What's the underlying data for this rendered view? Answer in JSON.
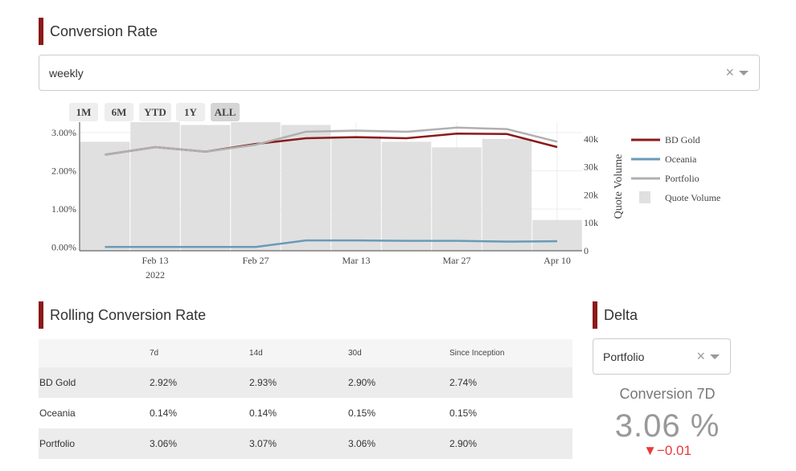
{
  "conversion_section": {
    "title": "Conversion Rate"
  },
  "frequency_dropdown": {
    "value": "weekly",
    "clear": "×"
  },
  "rangeselector": [
    "1M",
    "6M",
    "YTD",
    "1Y",
    "ALL"
  ],
  "active_range": "ALL",
  "chart_data": {
    "type": "line+bar",
    "x": [
      "2022-02-06",
      "2022-02-13",
      "2022-02-20",
      "2022-02-27",
      "2022-03-06",
      "2022-03-13",
      "2022-03-20",
      "2022-03-27",
      "2022-04-03",
      "2022-04-10"
    ],
    "x_ticks": [
      {
        "date": "2022-02-13",
        "label": "Feb 13",
        "sub": "2022"
      },
      {
        "date": "2022-02-27",
        "label": "Feb 27",
        "sub": ""
      },
      {
        "date": "2022-03-13",
        "label": "Mar 13",
        "sub": ""
      },
      {
        "date": "2022-03-27",
        "label": "Mar 27",
        "sub": ""
      },
      {
        "date": "2022-04-10",
        "label": "Apr 10",
        "sub": ""
      }
    ],
    "y_ticks": [
      "0.00%",
      "1.00%",
      "2.00%",
      "3.00%"
    ],
    "y2_ticks": [
      "0",
      "10k",
      "20k",
      "30k",
      "40k"
    ],
    "ylim": [
      -0.0009,
      0.0327
    ],
    "y2lim": [
      0,
      46000
    ],
    "y2label": "Quote Volume",
    "series": [
      {
        "name": "BD Gold",
        "color": "#8b1a1a",
        "values": [
          0.0242,
          0.0262,
          0.025,
          0.027,
          0.0285,
          0.0288,
          0.0285,
          0.0297,
          0.0296,
          0.0262
        ]
      },
      {
        "name": "Oceania",
        "color": "#6a9ab8",
        "values": [
          0.0001,
          0.0001,
          0.0001,
          0.0001,
          0.0018,
          0.0018,
          0.0017,
          0.0017,
          0.0015,
          0.0016
        ]
      },
      {
        "name": "Portfolio",
        "color": "#b0b0b0",
        "values": [
          0.0242,
          0.0262,
          0.025,
          0.0268,
          0.0302,
          0.0305,
          0.0302,
          0.0313,
          0.0309,
          0.0276
        ]
      }
    ],
    "bars": {
      "name": "Quote Volume",
      "color": "#e0e0e0",
      "values": [
        39000,
        46000,
        45000,
        46000,
        45000,
        41000,
        39000,
        37000,
        40000,
        11000
      ]
    }
  },
  "rolling_section": {
    "title": "Rolling Conversion Rate"
  },
  "rolling_table": {
    "headers": [
      "",
      "7d",
      "14d",
      "30d",
      "Since Inception"
    ],
    "rows": [
      [
        "BD Gold",
        "2.92%",
        "2.93%",
        "2.90%",
        "2.74%"
      ],
      [
        "Oceania",
        "0.14%",
        "0.14%",
        "0.15%",
        "0.15%"
      ],
      [
        "Portfolio",
        "3.06%",
        "3.07%",
        "3.06%",
        "2.90%"
      ]
    ]
  },
  "delta_section": {
    "title": "Delta"
  },
  "delta_dropdown": {
    "value": "Portfolio",
    "clear": "×"
  },
  "kpi": {
    "title": "Conversion 7D",
    "value": "3.06 %",
    "delta": "▼−0.01"
  }
}
